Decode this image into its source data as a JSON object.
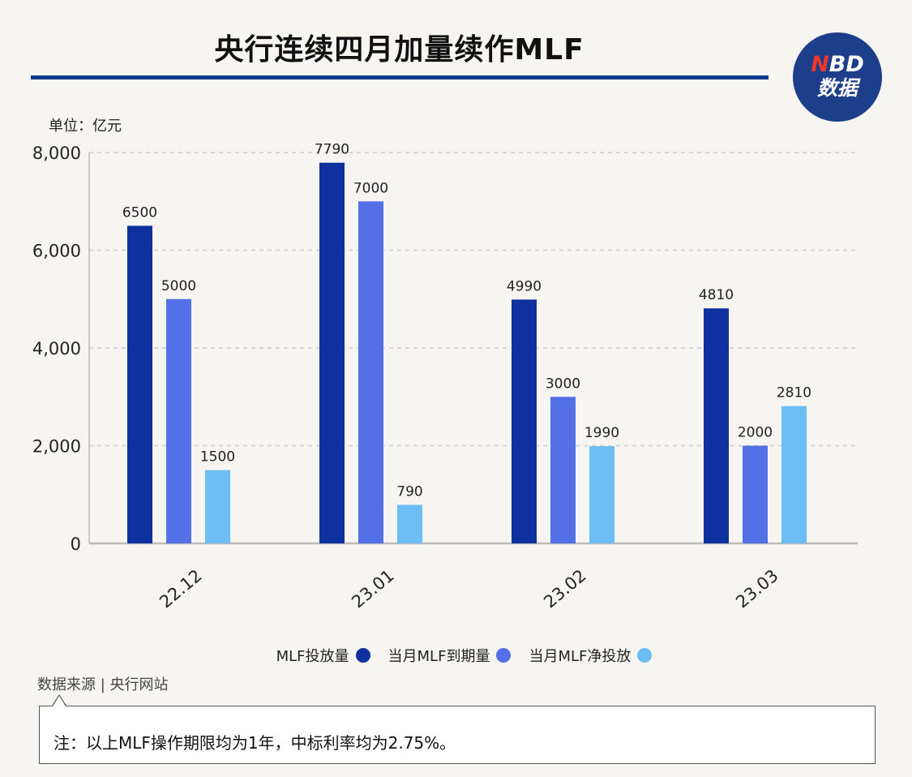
{
  "title": "央行连续四月加量续作MLF",
  "logo": {
    "line1_n": "N",
    "line1_rest": "BD",
    "line2": "数据"
  },
  "unit_label": "单位：亿元",
  "source": "数据来源 | 央行网站",
  "note": "注：以上MLF操作期限均为1年，中标利率均为2.75%。",
  "chart_data": {
    "type": "bar",
    "categories": [
      "22.12",
      "23.01",
      "23.02",
      "23.03"
    ],
    "series": [
      {
        "name": "MLF投放量",
        "color": "#0f31a0",
        "values": [
          6500,
          7790,
          4990,
          4810
        ]
      },
      {
        "name": "当月MLF到期量",
        "color": "#5470e6",
        "values": [
          5000,
          7000,
          3000,
          2000
        ]
      },
      {
        "name": "当月MLF净投放",
        "color": "#6cbdf4",
        "values": [
          1500,
          790,
          1990,
          2810
        ]
      }
    ],
    "y_ticks": [
      "0",
      "2,000",
      "4,000",
      "6,000",
      "8,000"
    ],
    "ylim": [
      0,
      8000
    ],
    "grid": true,
    "legend_position": "bottom-center"
  }
}
